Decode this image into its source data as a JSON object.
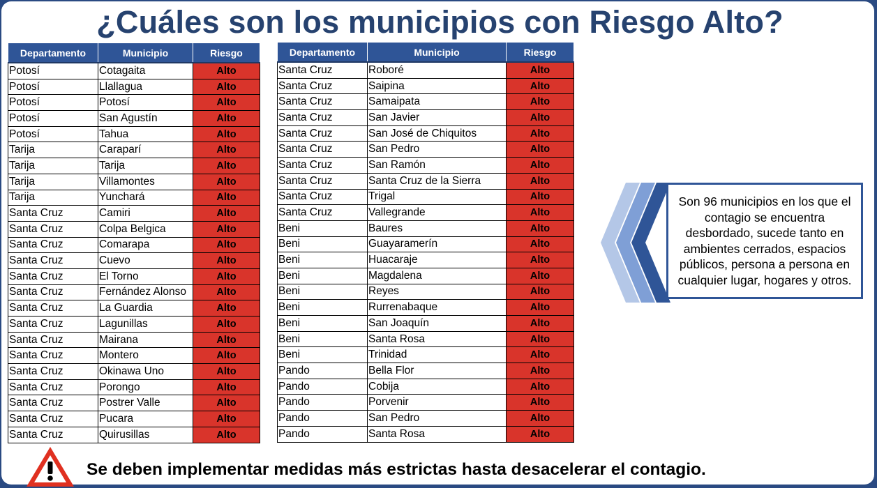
{
  "title": "¿Cuáles son los municipios con Riesgo Alto?",
  "table_headers": {
    "departamento": "Departamento",
    "municipio": "Municipio",
    "riesgo": "Riesgo"
  },
  "table_left": [
    {
      "departamento": "Potosí",
      "municipio": "Cotagaita",
      "riesgo": "Alto"
    },
    {
      "departamento": "Potosí",
      "municipio": "Llallagua",
      "riesgo": "Alto"
    },
    {
      "departamento": "Potosí",
      "municipio": "Potosí",
      "riesgo": "Alto"
    },
    {
      "departamento": "Potosí",
      "municipio": "San Agustín",
      "riesgo": "Alto"
    },
    {
      "departamento": "Potosí",
      "municipio": "Tahua",
      "riesgo": "Alto"
    },
    {
      "departamento": "Tarija",
      "municipio": "Caraparí",
      "riesgo": "Alto"
    },
    {
      "departamento": "Tarija",
      "municipio": "Tarija",
      "riesgo": "Alto"
    },
    {
      "departamento": "Tarija",
      "municipio": "Villamontes",
      "riesgo": "Alto"
    },
    {
      "departamento": "Tarija",
      "municipio": "Yunchará",
      "riesgo": "Alto"
    },
    {
      "departamento": "Santa Cruz",
      "municipio": "Camiri",
      "riesgo": "Alto"
    },
    {
      "departamento": "Santa Cruz",
      "municipio": "Colpa Belgica",
      "riesgo": "Alto"
    },
    {
      "departamento": "Santa Cruz",
      "municipio": "Comarapa",
      "riesgo": "Alto"
    },
    {
      "departamento": "Santa Cruz",
      "municipio": "Cuevo",
      "riesgo": "Alto"
    },
    {
      "departamento": "Santa Cruz",
      "municipio": "El Torno",
      "riesgo": "Alto"
    },
    {
      "departamento": "Santa Cruz",
      "municipio": "Fernández Alonso",
      "riesgo": "Alto"
    },
    {
      "departamento": "Santa Cruz",
      "municipio": "La Guardia",
      "riesgo": "Alto"
    },
    {
      "departamento": "Santa Cruz",
      "municipio": "Lagunillas",
      "riesgo": "Alto"
    },
    {
      "departamento": "Santa Cruz",
      "municipio": "Mairana",
      "riesgo": "Alto"
    },
    {
      "departamento": "Santa Cruz",
      "municipio": "Montero",
      "riesgo": "Alto"
    },
    {
      "departamento": "Santa Cruz",
      "municipio": "Okinawa Uno",
      "riesgo": "Alto"
    },
    {
      "departamento": "Santa Cruz",
      "municipio": "Porongo",
      "riesgo": "Alto"
    },
    {
      "departamento": "Santa Cruz",
      "municipio": "Postrer Valle",
      "riesgo": "Alto"
    },
    {
      "departamento": "Santa Cruz",
      "municipio": "Pucara",
      "riesgo": "Alto"
    },
    {
      "departamento": "Santa Cruz",
      "municipio": "Quirusillas",
      "riesgo": "Alto"
    }
  ],
  "table_right": [
    {
      "departamento": "Santa Cruz",
      "municipio": "Roboré",
      "riesgo": "Alto"
    },
    {
      "departamento": "Santa Cruz",
      "municipio": "Saipina",
      "riesgo": "Alto"
    },
    {
      "departamento": "Santa Cruz",
      "municipio": "Samaipata",
      "riesgo": "Alto"
    },
    {
      "departamento": "Santa Cruz",
      "municipio": "San Javier",
      "riesgo": "Alto"
    },
    {
      "departamento": "Santa Cruz",
      "municipio": "San José de Chiquitos",
      "riesgo": "Alto"
    },
    {
      "departamento": "Santa Cruz",
      "municipio": "San Pedro",
      "riesgo": "Alto"
    },
    {
      "departamento": "Santa Cruz",
      "municipio": "San Ramón",
      "riesgo": "Alto"
    },
    {
      "departamento": "Santa Cruz",
      "municipio": "Santa Cruz de la Sierra",
      "riesgo": "Alto"
    },
    {
      "departamento": "Santa Cruz",
      "municipio": "Trigal",
      "riesgo": "Alto"
    },
    {
      "departamento": "Santa Cruz",
      "municipio": "Vallegrande",
      "riesgo": "Alto"
    },
    {
      "departamento": "Beni",
      "municipio": "Baures",
      "riesgo": "Alto"
    },
    {
      "departamento": "Beni",
      "municipio": "Guayaramerín",
      "riesgo": "Alto"
    },
    {
      "departamento": "Beni",
      "municipio": "Huacaraje",
      "riesgo": "Alto"
    },
    {
      "departamento": "Beni",
      "municipio": "Magdalena",
      "riesgo": "Alto"
    },
    {
      "departamento": "Beni",
      "municipio": "Reyes",
      "riesgo": "Alto"
    },
    {
      "departamento": "Beni",
      "municipio": "Rurrenabaque",
      "riesgo": "Alto"
    },
    {
      "departamento": "Beni",
      "municipio": "San Joaquín",
      "riesgo": "Alto"
    },
    {
      "departamento": "Beni",
      "municipio": "Santa Rosa",
      "riesgo": "Alto"
    },
    {
      "departamento": "Beni",
      "municipio": "Trinidad",
      "riesgo": "Alto"
    },
    {
      "departamento": "Pando",
      "municipio": "Bella Flor",
      "riesgo": "Alto"
    },
    {
      "departamento": "Pando",
      "municipio": "Cobija",
      "riesgo": "Alto"
    },
    {
      "departamento": "Pando",
      "municipio": "Porvenir",
      "riesgo": "Alto"
    },
    {
      "departamento": "Pando",
      "municipio": "San Pedro",
      "riesgo": "Alto"
    },
    {
      "departamento": "Pando",
      "municipio": "Santa Rosa",
      "riesgo": "Alto"
    }
  ],
  "info_text": "Son 96 municipios en los que el contagio se encuentra desbordado, sucede tanto en ambientes cerrados, espacios públicos, persona a persona en cualquier lugar, hogares y otros.",
  "warning_icon": "warning-triangle-icon",
  "footer_text": "Se deben implementar medidas más estrictas hasta desacelerar el contagio.",
  "colors": {
    "header_bg": "#2f5597",
    "title": "#26426f",
    "riesgo_alto": "#d9342b",
    "chevron_dark": "#2f5597",
    "chevron_mid": "#7f9fd6",
    "chevron_light": "#b4c7e7",
    "warning_red": "#e03020"
  }
}
